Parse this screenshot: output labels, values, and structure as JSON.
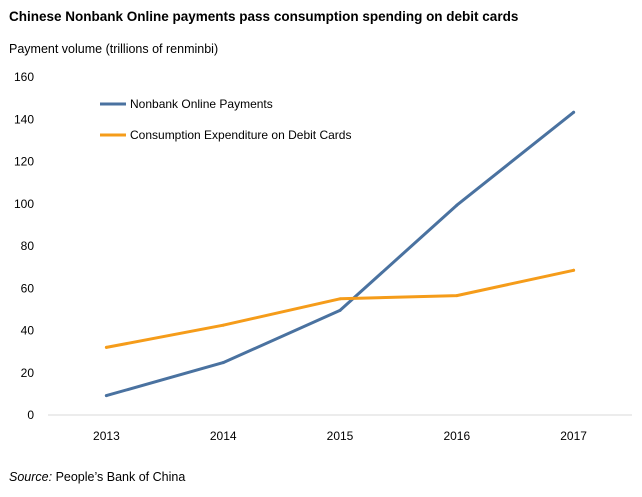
{
  "chart_data": {
    "type": "line",
    "title": "Chinese Nonbank Online payments pass consumption spending on debit cards",
    "ylabel": "Payment volume (trillions of renminbi)",
    "xlabel": "",
    "categories": [
      "2013",
      "2014",
      "2015",
      "2016",
      "2017"
    ],
    "ylim": [
      0,
      160
    ],
    "yticks": [
      0,
      20,
      40,
      60,
      80,
      100,
      120,
      140,
      160
    ],
    "grid": false,
    "legend_position": "top-left",
    "series": [
      {
        "name": "Nonbank Online Payments",
        "color": "#4a72a0",
        "values": [
          9.2,
          24.8,
          49.5,
          99.3,
          143.3
        ]
      },
      {
        "name": "Consumption Expenditure on Debit Cards",
        "color": "#f59c1a",
        "values": [
          32,
          42.5,
          55,
          56.5,
          68.5
        ]
      }
    ]
  },
  "source": {
    "label": "Source:",
    "text": " People’s Bank of China"
  }
}
